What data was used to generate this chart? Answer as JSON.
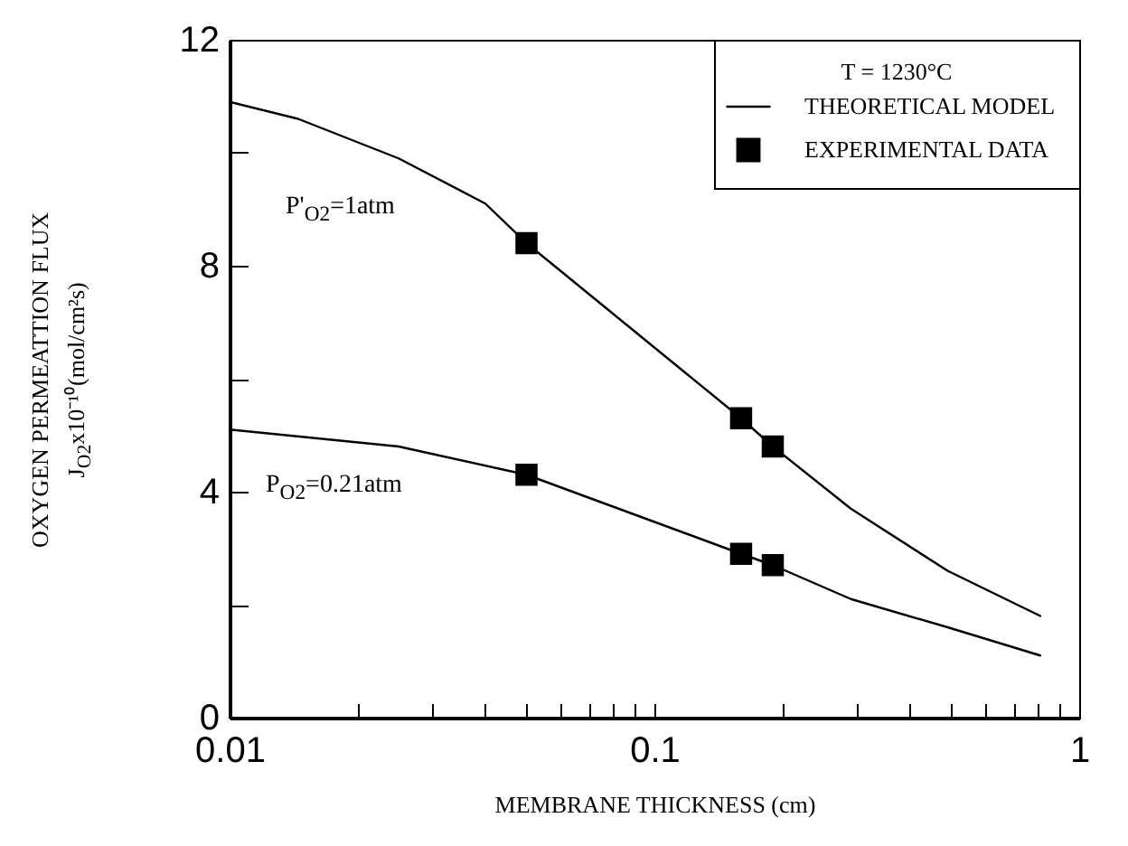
{
  "chart_data": {
    "type": "line",
    "xlabel": "MEMBRANE THICKNESS (cm)",
    "ylabel": "OXYGEN PERMEATTION FLUX\nJ$_{O2}$x10⁻¹⁰(mol/cm²s)",
    "legend_title": "T = 1230°C",
    "legend": "top right",
    "log": "x",
    "xlim": [
      0.01,
      1
    ],
    "xticks": [
      0.01,
      {
        "value": 0.02,
        "label": null
      },
      {
        "value": 0.03,
        "label": null
      },
      {
        "value": 0.04,
        "label": null
      },
      {
        "value": 0.05,
        "label": null
      },
      {
        "value": 0.06,
        "label": null
      },
      {
        "value": 0.07,
        "label": null
      },
      {
        "value": 0.08,
        "label": null
      },
      {
        "value": 0.09,
        "label": null
      },
      0.1,
      {
        "value": 0.2,
        "label": null
      },
      {
        "value": 0.3,
        "label": null
      },
      {
        "value": 0.4,
        "label": null
      },
      {
        "value": 0.5,
        "label": null
      },
      {
        "value": 0.6,
        "label": null
      },
      {
        "value": 0.7,
        "label": null
      },
      {
        "value": 0.8,
        "label": null
      },
      {
        "value": 0.9,
        "label": null
      },
      1
    ],
    "ylim": [
      0,
      12
    ],
    "yticks": [
      0,
      {
        "value": 2,
        "label": null
      },
      4,
      {
        "value": 6,
        "label": null
      },
      8,
      {
        "value": 10,
        "label": null
      },
      12
    ],
    "series": [
      {
        "name": "THEORETICAL MODEL",
        "type": "line",
        "color": "#000000",
        "x": [
          0.01,
          0.0145,
          0.025,
          0.04,
          0.05,
          0.16,
          0.19,
          0.29,
          0.49,
          0.81
        ],
        "values": [
          10.9,
          10.6,
          9.9,
          9.1,
          8.4,
          5.3,
          4.8,
          3.7,
          2.6,
          1.8
        ]
      },
      {
        "type": "line",
        "color": "#000000",
        "x": [
          0.01,
          0.025,
          0.05,
          0.16,
          0.19,
          0.29,
          0.49,
          0.81
        ],
        "values": [
          5.1,
          4.8,
          4.3,
          2.9,
          2.7,
          2.1,
          1.6,
          1.1
        ]
      },
      {
        "name": "EXPERIMENTAL DATA",
        "type": "scatter",
        "marker": "square",
        "color": "#000000",
        "x": [
          0.05,
          0.16,
          0.19,
          0.05,
          0.16,
          0.19
        ],
        "values": [
          8.4,
          5.3,
          4.8,
          4.3,
          2.9,
          2.7
        ]
      }
    ],
    "annotations": [
      "P'$_{O2}$=1atm",
      "P$_{O2}$=0.21atm"
    ]
  }
}
